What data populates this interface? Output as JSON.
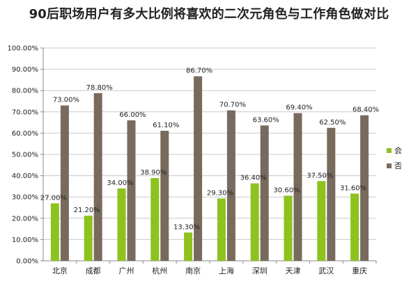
{
  "chart_data": {
    "type": "bar",
    "title": "90后职场用户有多大比例将喜欢的二次元角色与工作角色做对比",
    "categories": [
      "北京",
      "成都",
      "广州",
      "杭州",
      "南京",
      "上海",
      "深圳",
      "天津",
      "武汉",
      "重庆"
    ],
    "series": [
      {
        "name": "会",
        "color": "#8dc21f",
        "values": [
          27.0,
          21.2,
          34.0,
          38.9,
          13.3,
          29.3,
          36.4,
          30.6,
          37.5,
          31.6
        ]
      },
      {
        "name": "否",
        "color": "#786b5e",
        "values": [
          73.0,
          78.8,
          66.0,
          61.1,
          86.7,
          70.7,
          63.6,
          69.4,
          62.5,
          68.4
        ]
      }
    ],
    "ylim": [
      0,
      100
    ],
    "ytick_step": 10,
    "ytick_format": "percent_2dp",
    "xlabel": "",
    "ylabel": "",
    "grid": true,
    "legend": "right",
    "data_labels": true
  }
}
